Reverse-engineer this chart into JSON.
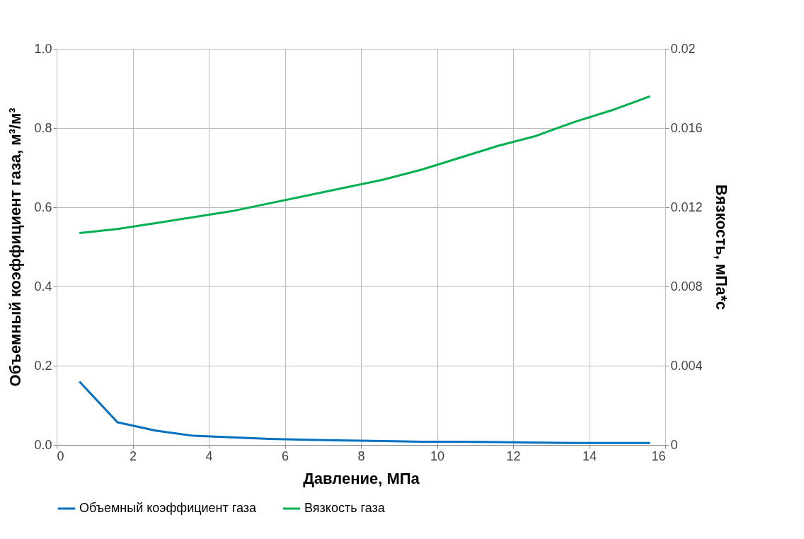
{
  "chart_data": {
    "type": "line",
    "xlabel": "Давление, МПа",
    "ylabel": "Объемный коэффициент газа, м³/м³",
    "y2label": "Вязкость, мПа*с",
    "x": [
      0.6,
      1.6,
      2.6,
      3.6,
      4.6,
      5.6,
      6.6,
      7.6,
      8.6,
      9.6,
      10.6,
      11.6,
      12.6,
      13.6,
      14.6,
      15.6
    ],
    "series": [
      {
        "name": "Объемный коэффициент газа",
        "color": "#0070c0",
        "values": [
          0.16,
          0.057,
          0.036,
          0.023,
          0.019,
          0.015,
          0.013,
          0.011,
          0.01,
          0.008,
          0.008,
          0.007,
          0.006,
          0.005,
          0.005,
          0.005
        ]
      },
      {
        "name": "Вязкость газа",
        "color": "#00b050",
        "axis": "y2",
        "values": [
          0.0107,
          0.0109,
          0.0112,
          0.0115,
          0.0118,
          0.0122,
          0.0126,
          0.013,
          0.0134,
          0.0139,
          0.0145,
          0.0151,
          0.0156,
          0.0163,
          0.0169,
          0.0176
        ]
      }
    ],
    "xlim": [
      0,
      16
    ],
    "xticks": [
      0,
      2,
      4,
      6,
      8,
      10,
      12,
      14,
      16
    ],
    "ylim": [
      0,
      1
    ],
    "yticks": [
      {
        "value": 0,
        "label": "0.0"
      },
      0.2,
      0.4,
      0.6,
      0.8,
      {
        "value": 1,
        "label": "1.0"
      }
    ],
    "y2lim": [
      0,
      0.02
    ],
    "y2ticks": [
      0,
      0.004,
      0.008,
      0.012,
      0.016,
      0.02
    ],
    "grid": true,
    "legend": "bottom",
    "marker": "none",
    "line_style": "solid"
  }
}
